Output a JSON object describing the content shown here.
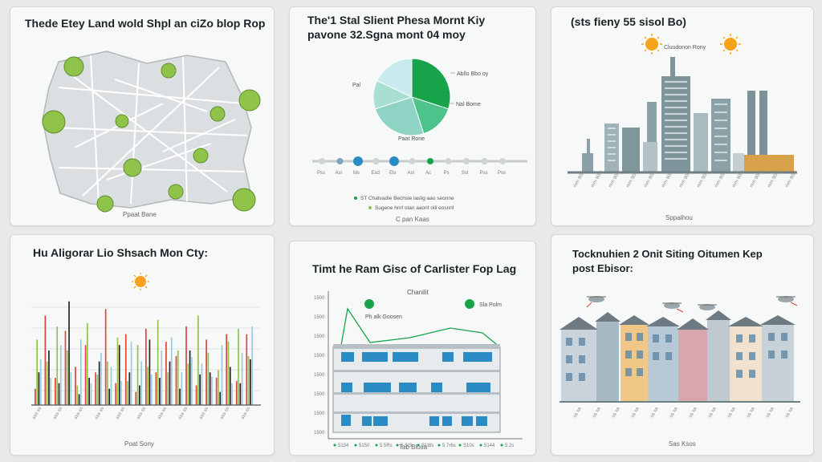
{
  "colors": {
    "panel_bg": "#f7f9f9",
    "green": "#8fc34a",
    "green_dark": "#16a34a",
    "teal": "#8fd3c4",
    "red": "#d9463b",
    "dark": "#222222",
    "lightblue": "#9cc9e0",
    "building_blue": "#2b8cc4",
    "sun": "#f6a21a"
  },
  "panels": {
    "map": {
      "title": "Thede Etey Land wold Shpl an ciZo blop Rop",
      "caption": "Ppaat Bane"
    },
    "pie": {
      "title_line1": "The'1 Stal Slient Phesa Mornt Kiy",
      "title_line2": "pavone 32.Sgna mont 04 moy",
      "labels": [
        "Abllo Bbo oy",
        "Nal Bome",
        "Pal"
      ],
      "sub_label": "Paat Rone",
      "axis_labels": [
        "Pss",
        "Asi",
        "Ms",
        "Esd",
        "Els",
        "Asl",
        "Ac",
        "Ps",
        "Ssl",
        "Pss",
        "Pss"
      ],
      "legend": [
        "ST Chatvadie Bechsie laslig aao seonne",
        "Sugene hnrl otan aaont olli eosnnl"
      ],
      "caption": "C pan Kaas"
    },
    "skyline": {
      "title": "(sts fieny 55 sisol Bo)",
      "sun_label": "Cluudonon Rony",
      "caption": "Sppalhou"
    },
    "bars": {
      "title": "Hu Aligorar Lio Shsach Mon Cty:",
      "caption": "Poat Sony"
    },
    "building": {
      "title": "Timt he Ram Gisc of Carlister Fop Lag",
      "callouts": [
        "Chanilit",
        "Ph alk Goosen",
        "Sla Polm"
      ],
      "caption": "Tab Blosa"
    },
    "houses": {
      "title_line1": "Tocknuhien 2 Onit Siting Oitumen Kep",
      "title_line2": "post Ebisor:",
      "caption": "Sas Ksos"
    }
  },
  "chart_data": [
    {
      "type": "pie",
      "series": [
        {
          "values": [
            30,
            15,
            25,
            12,
            18
          ]
        }
      ]
    },
    {
      "type": "bar",
      "categories": [
        "1",
        "2",
        "3",
        "4",
        "5",
        "6",
        "7",
        "8",
        "9",
        "10",
        "11",
        "12",
        "13",
        "14",
        "15",
        "16",
        "17",
        "18",
        "19",
        "20",
        "21",
        "22"
      ],
      "ylim": [
        0,
        100
      ],
      "series": [
        {
          "color": "#d9463b",
          "values": [
            15,
            82,
            25,
            68,
            35,
            55,
            30,
            88,
            20,
            65,
            12,
            70,
            30,
            58,
            45,
            72,
            18,
            60,
            25,
            65,
            22,
            65
          ]
        },
        {
          "color": "#8fc34a",
          "values": [
            60,
            40,
            72,
            50,
            18,
            75,
            28,
            40,
            62,
            22,
            55,
            35,
            78,
            30,
            50,
            38,
            82,
            48,
            32,
            58,
            70,
            45
          ]
        },
        {
          "color": "#222222",
          "values": [
            30,
            50,
            20,
            95,
            10,
            25,
            40,
            15,
            55,
            30,
            18,
            60,
            25,
            40,
            15,
            50,
            28,
            30,
            12,
            35,
            20,
            42
          ]
        },
        {
          "color": "#9cc9e0",
          "values": [
            42,
            25,
            55,
            30,
            60,
            20,
            48,
            35,
            22,
            58,
            40,
            28,
            50,
            62,
            30,
            44,
            38,
            26,
            55,
            20,
            48,
            72
          ]
        }
      ]
    },
    {
      "type": "line",
      "x_labels": [
        "5134",
        "5150",
        "5 5Rs",
        "5 SiS",
        "S1t8s",
        "5 7r6s",
        "S10s",
        "5144",
        "5 2s"
      ],
      "y_labels": [
        "1500",
        "1500",
        "1500",
        "1500",
        "1500",
        "1500",
        "1500",
        "1500"
      ]
    }
  ]
}
